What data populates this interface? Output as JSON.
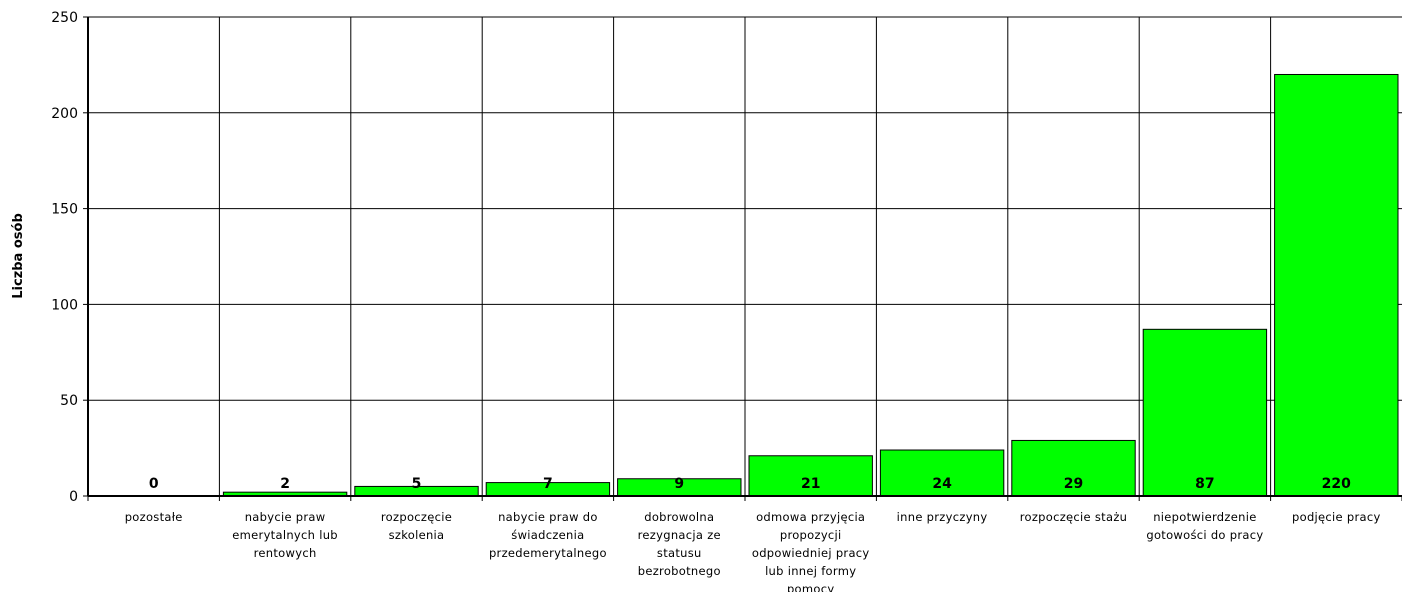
{
  "chart_data": {
    "type": "bar",
    "ylabel": "Liczba osób",
    "xlabel": "",
    "ylim": [
      0,
      250
    ],
    "yticks": [
      0,
      50,
      100,
      150,
      200,
      250
    ],
    "grid": true,
    "bar_color": "#00ff00",
    "bar_stroke": "#000000",
    "categories": [
      "pozostałe",
      "nabycie praw emerytalnych lub rentowych",
      "rozpoczęcie szkolenia",
      "nabycie praw do świadczenia przedemerytalnego",
      "dobrowolna rezygnacja ze statusu bezrobotnego",
      "odmowa przyjęcia propozycji odpowiedniej pracy lub innej formy pomocy",
      "inne przyczyny",
      "rozpoczęcie stażu",
      "niepotwierdzenie gotowości do pracy",
      "podjęcie pracy"
    ],
    "category_label_lines": [
      [
        "pozostałe"
      ],
      [
        "nabycie praw",
        "emerytalnych lub",
        "rentowych"
      ],
      [
        "rozpoczęcie",
        "szkolenia"
      ],
      [
        "nabycie praw do",
        "świadczenia",
        "przedemerytalnego"
      ],
      [
        "dobrowolna",
        "rezygnacja ze",
        "statusu",
        "bezrobotnego"
      ],
      [
        "odmowa przyjęcia",
        "propozycji",
        "odpowiedniej pracy",
        "lub innej formy",
        "pomocy"
      ],
      [
        "inne przyczyny"
      ],
      [
        "rozpoczęcie stażu"
      ],
      [
        "niepotwierdzenie",
        "gotowości do pracy"
      ],
      [
        "podjęcie pracy"
      ]
    ],
    "values": [
      0,
      2,
      5,
      7,
      9,
      21,
      24,
      29,
      87,
      220
    ],
    "data_labels": [
      "0",
      "2",
      "5",
      "7",
      "9",
      "21",
      "24",
      "29",
      "87",
      "220"
    ]
  }
}
